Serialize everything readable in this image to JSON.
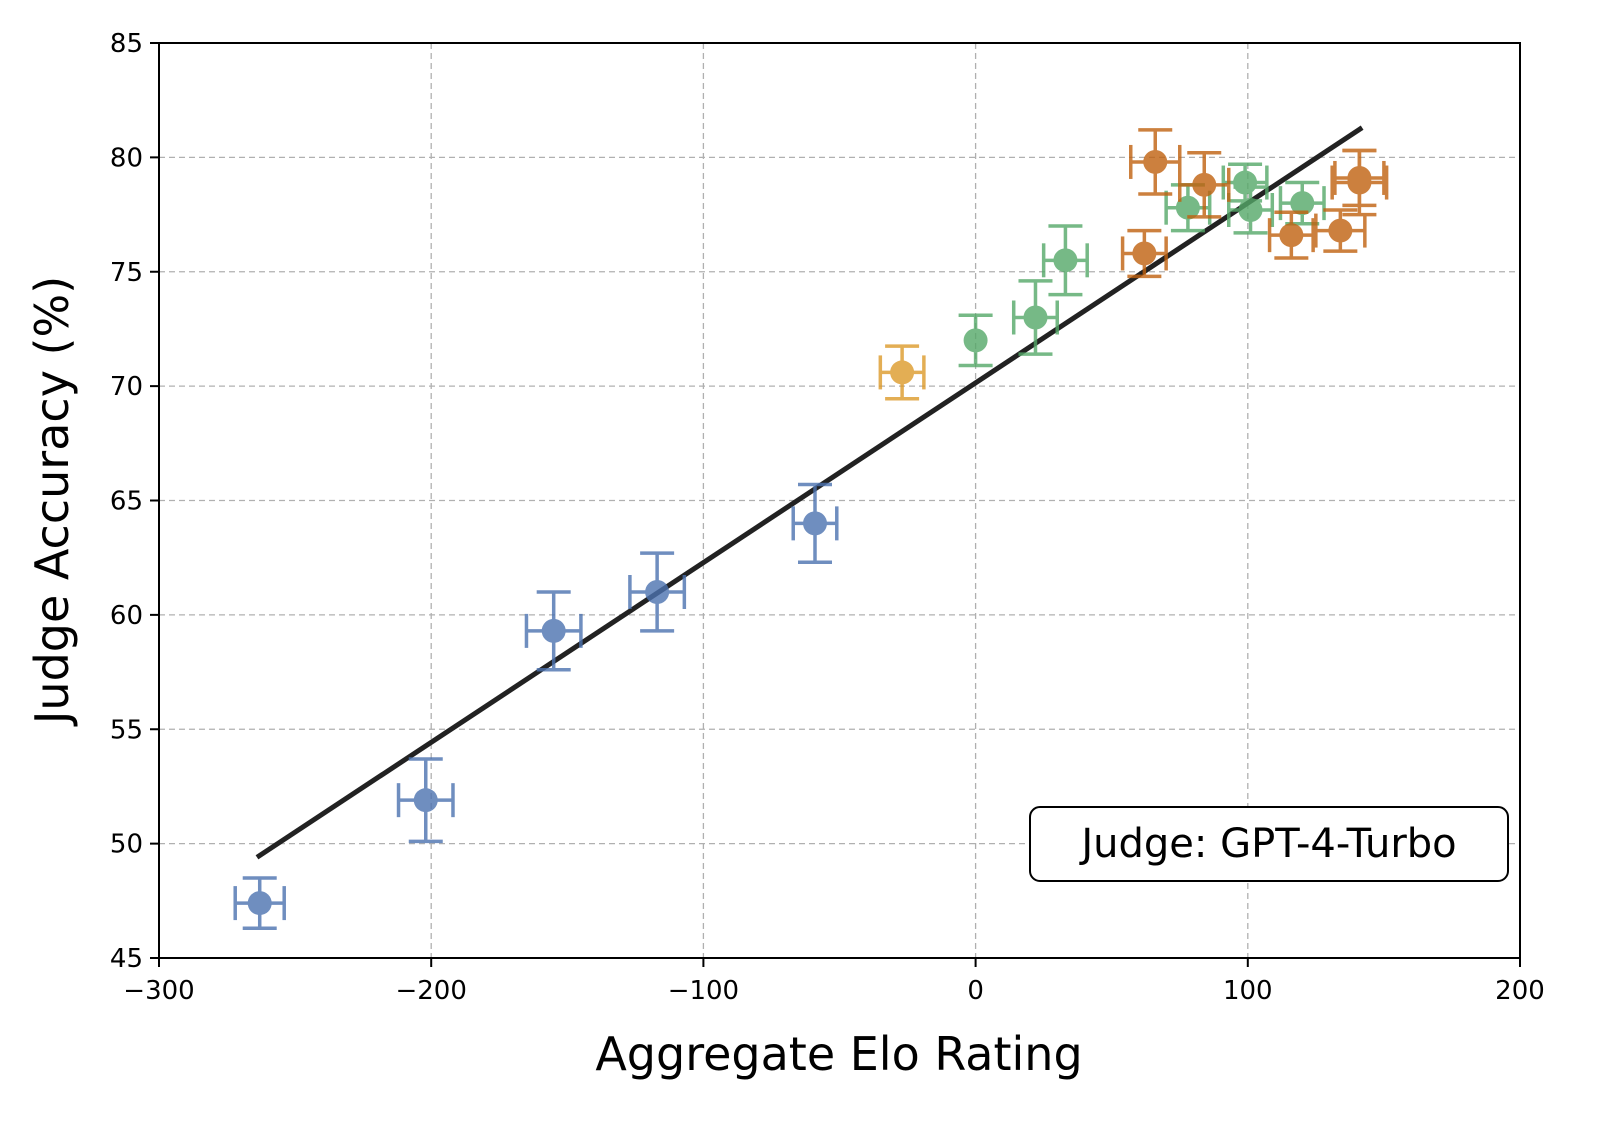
{
  "chart_data": {
    "type": "scatter",
    "title": "",
    "xlabel": "Aggregate Elo Rating",
    "ylabel": "Judge Accuracy (%)",
    "xlim": [
      -300,
      200
    ],
    "ylim": [
      45,
      85
    ],
    "xticks": [
      -300,
      -200,
      -100,
      0,
      100,
      200
    ],
    "xtick_labels": [
      "−300",
      "−200",
      "−100",
      "0",
      "100",
      "200"
    ],
    "yticks": [
      45,
      50,
      55,
      60,
      65,
      70,
      75,
      80,
      85
    ],
    "ytick_labels": [
      "45",
      "50",
      "55",
      "60",
      "65",
      "70",
      "75",
      "80",
      "85"
    ],
    "grid": true,
    "annotation": "Judge: GPT-4-Turbo",
    "annotation_placement": "bottom-right",
    "fit_line": {
      "x": [
        -264,
        142
      ],
      "y": [
        49.4,
        81.3
      ],
      "color": "#222222"
    },
    "series": [
      {
        "name": "blue",
        "color": "#4c72b0",
        "points": [
          {
            "x": -263,
            "y": 47.4,
            "xerr": 9,
            "yerr": 1.1
          },
          {
            "x": -202,
            "y": 51.9,
            "xerr": 10,
            "yerr": 1.8
          },
          {
            "x": -155,
            "y": 59.3,
            "xerr": 10,
            "yerr": 1.7
          },
          {
            "x": -117,
            "y": 61.0,
            "xerr": 10,
            "yerr": 1.7
          },
          {
            "x": -59,
            "y": 64.0,
            "xerr": 8,
            "yerr": 1.7
          }
        ]
      },
      {
        "name": "yellow",
        "color": "#dd9a2a",
        "points": [
          {
            "x": -27,
            "y": 70.6,
            "xerr": 8,
            "yerr": 1.15
          }
        ]
      },
      {
        "name": "green",
        "color": "#55a868",
        "points": [
          {
            "x": 0,
            "y": 72.0,
            "xerr": 0,
            "yerr": 1.1
          },
          {
            "x": 22,
            "y": 73.0,
            "xerr": 8,
            "yerr": 1.6
          },
          {
            "x": 33,
            "y": 75.5,
            "xerr": 8,
            "yerr": 1.5
          },
          {
            "x": 78,
            "y": 77.8,
            "xerr": 8,
            "yerr": 1.0
          },
          {
            "x": 99,
            "y": 78.9,
            "xerr": 8,
            "yerr": 0.8
          },
          {
            "x": 101,
            "y": 77.7,
            "xerr": 8,
            "yerr": 1.0
          },
          {
            "x": 120,
            "y": 78.0,
            "xerr": 8,
            "yerr": 0.9
          }
        ]
      },
      {
        "name": "orange",
        "color": "#c0610f",
        "points": [
          {
            "x": 66,
            "y": 79.8,
            "xerr": 9,
            "yerr": 1.4
          },
          {
            "x": 84,
            "y": 78.8,
            "xerr": 9,
            "yerr": 1.4
          },
          {
            "x": 62,
            "y": 75.8,
            "xerr": 8,
            "yerr": 1.0
          },
          {
            "x": 116,
            "y": 76.6,
            "xerr": 8,
            "yerr": 1.0
          },
          {
            "x": 134,
            "y": 76.8,
            "xerr": 9,
            "yerr": 0.9
          },
          {
            "x": 141,
            "y": 79.1,
            "xerr": 9,
            "yerr": 1.2
          },
          {
            "x": 141,
            "y": 78.9,
            "xerr": 10,
            "yerr": 1.4
          }
        ]
      }
    ]
  }
}
